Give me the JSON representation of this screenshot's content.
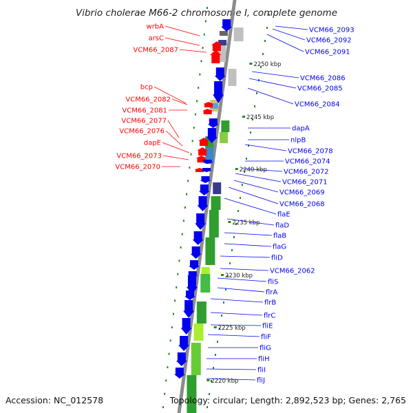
{
  "title": "Vibrio cholerae M66-2 chromosome I, complete genome",
  "footer": {
    "accession": "Accession: NC_012578",
    "topology": "Topology: circular; Length: 2,892,523 bp; Genes: 2,765"
  },
  "colors": {
    "backbone": "#8c8c8c",
    "forward_gene": "#0000ee",
    "reverse_gene": "#ff0000",
    "cds_green": "#2f9e2f",
    "cds_lime": "#aaee33",
    "cds_gray": "#c0c0c0",
    "cds_darkgray": "#666666",
    "cds_navy": "#3a3a8c",
    "tick": "#228822"
  },
  "kbp_ticks": [
    "2250 kbp",
    "2245 kbp",
    "2240 kbp",
    "2235 kbp",
    "2230 kbp",
    "2225 kbp",
    "2220 kbp"
  ],
  "left_genes": [
    "wrbA",
    "arsC",
    "VCM66_2087",
    "bcp",
    "VCM66_2082",
    "VCM66_2081",
    "VCM66_2077",
    "VCM66_2076",
    "dapE",
    "VCM66_2073",
    "VCM66_2070"
  ],
  "right_genes": [
    "VCM66_2093",
    "VCM66_2092",
    "VCM66_2091",
    "VCM66_2086",
    "VCM66_2085",
    "VCM66_2084",
    "dapA",
    "nlpB",
    "VCM66_2078",
    "VCM66_2074",
    "VCM66_2072",
    "VCM66_2071",
    "VCM66_2069",
    "VCM66_2068",
    "flaE",
    "flaD",
    "flaB",
    "flaG",
    "fliD",
    "VCM66_2062",
    "fliS",
    "flrA",
    "flrB",
    "flrC",
    "fliE",
    "fliF",
    "fliG",
    "fliH",
    "fliI",
    "fliJ"
  ]
}
